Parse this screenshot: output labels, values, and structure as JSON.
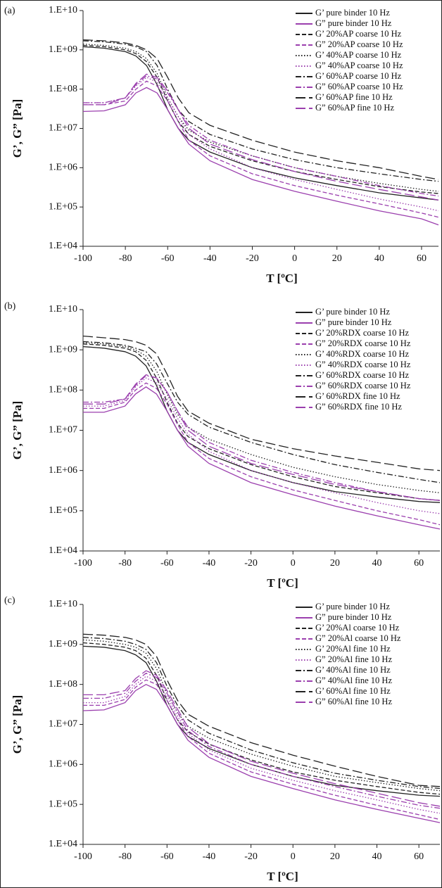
{
  "chart_data": [
    {
      "type": "line",
      "label": "(a)",
      "xlabel": "T [ºC]",
      "ylabel": "G’, G” [Pa]",
      "yscale": "log",
      "xlim": [
        -100,
        68
      ],
      "xticks": [
        -100,
        -80,
        -60,
        -40,
        -20,
        0,
        20,
        40,
        60
      ],
      "ylim": [
        10000,
        10000000000
      ],
      "yticks": [
        {
          "value": 10000,
          "label": "1.E+04"
        },
        {
          "value": 100000,
          "label": "1.E+05"
        },
        {
          "value": 1000000,
          "label": "1.E+06"
        },
        {
          "value": 10000000,
          "label": "1.E+07"
        },
        {
          "value": 100000000,
          "label": "1.E+08"
        },
        {
          "value": 1000000000,
          "label": "1.E+09"
        },
        {
          "value": 10000000000,
          "label": "1.E+10"
        }
      ],
      "x": [
        -100,
        -90,
        -80,
        -75,
        -70,
        -65,
        -60,
        -55,
        -50,
        -40,
        -20,
        0,
        20,
        40,
        60,
        68
      ],
      "series": [
        {
          "name": "G’ pure binder 10 Hz",
          "color": "#222222",
          "dash": "solid",
          "values": [
            1200000000,
            1100000000,
            900000000,
            700000000,
            400000000,
            130000000,
            30000000,
            10000000,
            5000000,
            2500000,
            1000000,
            550000,
            350000,
            230000,
            170000,
            150000
          ]
        },
        {
          "name": "G” pure binder 10 Hz",
          "color": "#9b3fae",
          "dash": "solid",
          "values": [
            27000000,
            28000000,
            40000000,
            80000000,
            110000000,
            80000000,
            30000000,
            10000000,
            4000000,
            1500000,
            500000,
            250000,
            140000,
            80000,
            50000,
            35000
          ]
        },
        {
          "name": "G’ 20%AP coarse 10 Hz",
          "color": "#222222",
          "dash": "dash",
          "values": [
            1300000000,
            1200000000,
            1000000000,
            800000000,
            500000000,
            200000000,
            50000000,
            15000000,
            7000000,
            3500000,
            1500000,
            800000,
            500000,
            330000,
            240000,
            220000
          ]
        },
        {
          "name": "G” 20%AP coarse 10 Hz",
          "color": "#9b3fae",
          "dash": "dash",
          "values": [
            40000000,
            40000000,
            50000000,
            100000000,
            160000000,
            120000000,
            50000000,
            15000000,
            5000000,
            2000000,
            700000,
            350000,
            200000,
            120000,
            70000,
            55000
          ]
        },
        {
          "name": "G’ 40%AP coarse 10 Hz",
          "color": "#222222",
          "dash": "dot",
          "values": [
            1400000000,
            1300000000,
            1100000000,
            900000000,
            600000000,
            250000000,
            60000000,
            20000000,
            9000000,
            4500000,
            2000000,
            1000000,
            600000,
            400000,
            280000,
            250000
          ]
        },
        {
          "name": "G” 40%AP coarse 10 Hz",
          "color": "#9b3fae",
          "dash": "dot",
          "values": [
            45000000,
            45000000,
            60000000,
            120000000,
            200000000,
            150000000,
            60000000,
            20000000,
            7000000,
            3000000,
            1000000,
            500000,
            280000,
            160000,
            100000,
            80000
          ]
        },
        {
          "name": "G’ 60%AP coarse 10 Hz",
          "color": "#222222",
          "dash": "dashdot",
          "values": [
            1700000000,
            1600000000,
            1400000000,
            1200000000,
            900000000,
            400000000,
            100000000,
            30000000,
            15000000,
            7000000,
            3000000,
            1600000,
            1000000,
            700000,
            500000,
            450000
          ]
        },
        {
          "name": "G” 60%AP coarse 10 Hz",
          "color": "#9b3fae",
          "dash": "dashdot",
          "values": [
            45000000,
            45000000,
            60000000,
            130000000,
            220000000,
            180000000,
            80000000,
            30000000,
            12000000,
            5000000,
            2000000,
            1000000,
            600000,
            350000,
            220000,
            190000
          ]
        },
        {
          "name": "G’ 60%AP fine 10 Hz",
          "color": "#222222",
          "dash": "long",
          "values": [
            1800000000,
            1700000000,
            1500000000,
            1300000000,
            1000000000,
            600000000,
            200000000,
            60000000,
            25000000,
            12000000,
            5000000,
            2500000,
            1500000,
            1000000,
            600000,
            500000
          ]
        },
        {
          "name": "G” 60%AP fine 10 Hz",
          "color": "#9b3fae",
          "dash": "long",
          "values": [
            40000000,
            40000000,
            60000000,
            140000000,
            240000000,
            200000000,
            90000000,
            30000000,
            10000000,
            4000000,
            1600000,
            800000,
            450000,
            280000,
            180000,
            150000
          ]
        }
      ]
    },
    {
      "type": "line",
      "label": "(b)",
      "xlabel": "T [ºC]",
      "ylabel": "G’, G” [Pa]",
      "yscale": "log",
      "xlim": [
        -100,
        70
      ],
      "xticks": [
        -100,
        -80,
        -60,
        -40,
        -20,
        0,
        20,
        40,
        60
      ],
      "ylim": [
        10000,
        10000000000
      ],
      "yticks": [
        {
          "value": 10000,
          "label": "1.E+04"
        },
        {
          "value": 100000,
          "label": "1.E+05"
        },
        {
          "value": 1000000,
          "label": "1.E+06"
        },
        {
          "value": 10000000,
          "label": "1.E+07"
        },
        {
          "value": 100000000,
          "label": "1.E+08"
        },
        {
          "value": 1000000000,
          "label": "1.E+09"
        },
        {
          "value": 10000000000,
          "label": "1.E+10"
        }
      ],
      "x": [
        -100,
        -90,
        -80,
        -75,
        -70,
        -65,
        -60,
        -55,
        -50,
        -40,
        -20,
        0,
        20,
        40,
        60,
        70
      ],
      "series": [
        {
          "name": "G’ pure binder 10 Hz",
          "color": "#222222",
          "dash": "solid",
          "values": [
            1200000000,
            1100000000,
            900000000,
            700000000,
            400000000,
            130000000,
            30000000,
            10000000,
            5000000,
            2500000,
            1000000,
            500000,
            300000,
            220000,
            170000,
            160000
          ]
        },
        {
          "name": "G” pure binder 10 Hz",
          "color": "#9b3fae",
          "dash": "solid",
          "values": [
            28000000,
            28000000,
            40000000,
            80000000,
            120000000,
            80000000,
            30000000,
            10000000,
            4000000,
            1500000,
            500000,
            250000,
            130000,
            75000,
            45000,
            35000
          ]
        },
        {
          "name": "G’ 20%RDX coarse 10 Hz",
          "color": "#222222",
          "dash": "dash",
          "values": [
            1400000000,
            1300000000,
            1100000000,
            900000000,
            550000000,
            200000000,
            50000000,
            15000000,
            7000000,
            3500000,
            1400000,
            700000,
            400000,
            280000,
            200000,
            180000
          ]
        },
        {
          "name": "G” 20%RDX coarse 10 Hz",
          "color": "#9b3fae",
          "dash": "dash",
          "values": [
            35000000,
            35000000,
            50000000,
            100000000,
            150000000,
            110000000,
            45000000,
            14000000,
            5000000,
            2000000,
            700000,
            330000,
            180000,
            100000,
            60000,
            45000
          ]
        },
        {
          "name": "G’ 40%RDX coarse 10 Hz",
          "color": "#222222",
          "dash": "dot",
          "values": [
            1500000000,
            1400000000,
            1200000000,
            1000000000,
            700000000,
            300000000,
            80000000,
            25000000,
            12000000,
            6000000,
            2500000,
            1200000,
            700000,
            450000,
            320000,
            280000
          ]
        },
        {
          "name": "G” 40%RDX coarse 10 Hz",
          "color": "#9b3fae",
          "dash": "dot",
          "values": [
            40000000,
            40000000,
            55000000,
            120000000,
            200000000,
            150000000,
            60000000,
            20000000,
            8000000,
            3000000,
            1000000,
            500000,
            280000,
            160000,
            100000,
            85000
          ]
        },
        {
          "name": "G’ 60%RDX coarse 10 Hz",
          "color": "#222222",
          "dash": "dashdot",
          "values": [
            1600000000,
            1500000000,
            1300000000,
            1100000000,
            900000000,
            450000000,
            150000000,
            50000000,
            25000000,
            12000000,
            5000000,
            2500000,
            1400000,
            900000,
            600000,
            500000
          ]
        },
        {
          "name": "G” 60%RDX coarse 10 Hz",
          "color": "#9b3fae",
          "dash": "dashdot",
          "values": [
            50000000,
            50000000,
            60000000,
            130000000,
            230000000,
            200000000,
            90000000,
            30000000,
            12000000,
            5000000,
            1800000,
            900000,
            500000,
            300000,
            200000,
            180000
          ]
        },
        {
          "name": "G’ 60%RDX fine 10 Hz",
          "color": "#222222",
          "dash": "long",
          "values": [
            2200000000,
            2000000000,
            1800000000,
            1600000000,
            1300000000,
            800000000,
            250000000,
            70000000,
            30000000,
            15000000,
            6000000,
            3500000,
            2300000,
            1600000,
            1100000,
            1000000
          ]
        },
        {
          "name": "G” 60%RDX fine 10 Hz",
          "color": "#9b3fae",
          "dash": "long",
          "values": [
            45000000,
            45000000,
            60000000,
            140000000,
            240000000,
            200000000,
            90000000,
            30000000,
            10000000,
            4000000,
            1500000,
            800000,
            450000,
            300000,
            200000,
            180000
          ]
        }
      ]
    },
    {
      "type": "line",
      "label": "(c)",
      "xlabel": "T [ºC]",
      "ylabel": "G’, G” [Pa]",
      "yscale": "log",
      "xlim": [
        -100,
        70
      ],
      "xticks": [
        -100,
        -80,
        -60,
        -40,
        -20,
        0,
        20,
        40,
        60
      ],
      "ylim": [
        10000,
        10000000000
      ],
      "yticks": [
        {
          "value": 10000,
          "label": "1.E+04"
        },
        {
          "value": 100000,
          "label": "1.E+05"
        },
        {
          "value": 1000000,
          "label": "1.E+06"
        },
        {
          "value": 10000000,
          "label": "1.E+07"
        },
        {
          "value": 100000000,
          "label": "1.E+08"
        },
        {
          "value": 1000000000,
          "label": "1.E+09"
        },
        {
          "value": 10000000000,
          "label": "1.E+10"
        }
      ],
      "x": [
        -100,
        -90,
        -80,
        -75,
        -70,
        -65,
        -60,
        -55,
        -50,
        -40,
        -20,
        0,
        20,
        40,
        60,
        70
      ],
      "series": [
        {
          "name": "G’ pure binder 10 Hz",
          "color": "#222222",
          "dash": "solid",
          "values": [
            900000000,
            850000000,
            700000000,
            550000000,
            350000000,
            120000000,
            30000000,
            10000000,
            5000000,
            2500000,
            1000000,
            500000,
            300000,
            220000,
            170000,
            160000
          ]
        },
        {
          "name": "G” pure binder 10 Hz",
          "color": "#9b3fae",
          "dash": "solid",
          "values": [
            22000000,
            23000000,
            35000000,
            70000000,
            100000000,
            75000000,
            30000000,
            10000000,
            4000000,
            1500000,
            500000,
            250000,
            130000,
            75000,
            45000,
            35000
          ]
        },
        {
          "name": "G’ 20%Al coarse 10 Hz",
          "color": "#222222",
          "dash": "dash",
          "values": [
            1100000000,
            1000000000,
            850000000,
            700000000,
            450000000,
            170000000,
            40000000,
            13000000,
            6500000,
            3200000,
            1300000,
            650000,
            400000,
            280000,
            200000,
            180000
          ]
        },
        {
          "name": "G” 20%Al coarse 10 Hz",
          "color": "#9b3fae",
          "dash": "dash",
          "values": [
            30000000,
            30000000,
            42000000,
            85000000,
            130000000,
            100000000,
            40000000,
            13000000,
            5000000,
            1900000,
            650000,
            320000,
            170000,
            95000,
            55000,
            42000
          ]
        },
        {
          "name": "G’ 20%Al fine 10 Hz",
          "color": "#222222",
          "dash": "dot",
          "values": [
            1300000000,
            1200000000,
            1000000000,
            850000000,
            600000000,
            250000000,
            60000000,
            20000000,
            9000000,
            4500000,
            1800000,
            900000,
            500000,
            350000,
            250000,
            220000
          ]
        },
        {
          "name": "G” 20%Al fine 10 Hz",
          "color": "#9b3fae",
          "dash": "dot",
          "values": [
            35000000,
            35000000,
            50000000,
            100000000,
            160000000,
            120000000,
            50000000,
            16000000,
            6000000,
            2300000,
            800000,
            400000,
            220000,
            130000,
            75000,
            60000
          ]
        },
        {
          "name": "G’ 40%Al fine 10 Hz",
          "color": "#222222",
          "dash": "dashdot",
          "values": [
            1500000000,
            1400000000,
            1200000000,
            1000000000,
            750000000,
            350000000,
            90000000,
            30000000,
            13000000,
            6000000,
            2300000,
            1100000,
            600000,
            400000,
            280000,
            250000
          ]
        },
        {
          "name": "G” 40%Al fine 10 Hz",
          "color": "#9b3fae",
          "dash": "dashdot",
          "values": [
            45000000,
            45000000,
            60000000,
            120000000,
            190000000,
            150000000,
            60000000,
            20000000,
            7000000,
            2800000,
            1000000,
            500000,
            280000,
            160000,
            95000,
            80000
          ]
        },
        {
          "name": "G’ 60%Al fine 10 Hz",
          "color": "#222222",
          "dash": "long",
          "values": [
            1800000000,
            1700000000,
            1500000000,
            1300000000,
            1000000000,
            500000000,
            130000000,
            40000000,
            18000000,
            9000000,
            3500000,
            1700000,
            900000,
            500000,
            300000,
            280000
          ]
        },
        {
          "name": "G” 60%Al fine 10 Hz",
          "color": "#9b3fae",
          "dash": "long",
          "values": [
            55000000,
            55000000,
            70000000,
            140000000,
            220000000,
            170000000,
            70000000,
            24000000,
            8500000,
            3300000,
            1200000,
            600000,
            330000,
            190000,
            110000,
            90000
          ]
        }
      ]
    }
  ]
}
